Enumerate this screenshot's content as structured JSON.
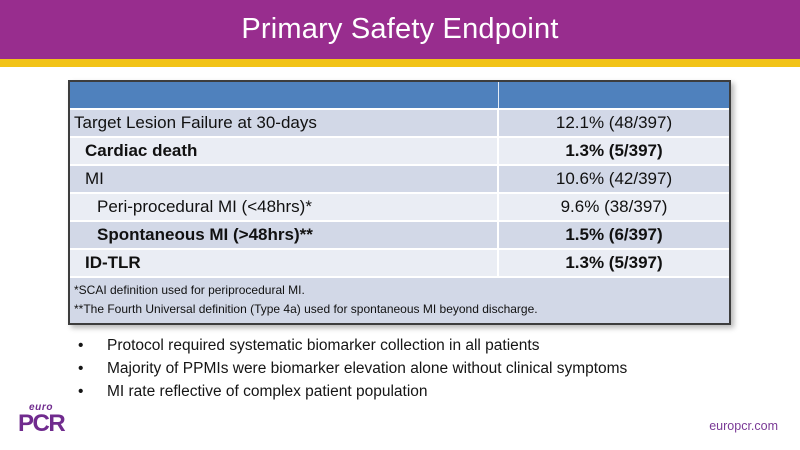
{
  "slide": {
    "title": "Primary Safety Endpoint"
  },
  "table": {
    "header": {
      "col1_label": "",
      "col2_label": ""
    },
    "rows": [
      {
        "label": "Target Lesion Failure at 30-days",
        "value": "12.1% (48/397)",
        "indent": 0,
        "bold": false,
        "band": "dark"
      },
      {
        "label": "Cardiac death",
        "value": "1.3% (5/397)",
        "indent": 1,
        "bold": true,
        "band": "light"
      },
      {
        "label": "MI",
        "value": "10.6% (42/397)",
        "indent": 1,
        "bold": false,
        "band": "dark"
      },
      {
        "label": "Peri-procedural MI (<48hrs)*",
        "value": "9.6% (38/397)",
        "indent": 2,
        "bold": false,
        "band": "light"
      },
      {
        "label": "Spontaneous MI (>48hrs)**",
        "value": "1.5% (6/397)",
        "indent": 2,
        "bold": true,
        "band": "dark"
      },
      {
        "label": "ID-TLR",
        "value": "1.3% (5/397)",
        "indent": 1,
        "bold": true,
        "band": "light"
      }
    ],
    "footnotes": [
      "*SCAI definition used for periprocedural MI.",
      "**The Fourth Universal definition (Type 4a) used for spontaneous MI beyond discharge."
    ]
  },
  "bullets": [
    "Protocol required systematic biomarker collection in all patients",
    "Majority of PPMIs were biomarker elevation alone without clinical symptoms",
    "MI rate reflective of complex patient population"
  ],
  "footer": {
    "logo_top": "euro",
    "logo_main": "PCR",
    "website": "europcr.com"
  },
  "colors": {
    "purple": "#982D8E",
    "gold": "#F2C318",
    "tblblue": "#4F81BD",
    "banddark": "#D2D8E7",
    "bandlight": "#EAEDF4",
    "border": "#3d3d3d",
    "logopurple": "#702B8E",
    "linkpurple": "#7A3A96"
  }
}
